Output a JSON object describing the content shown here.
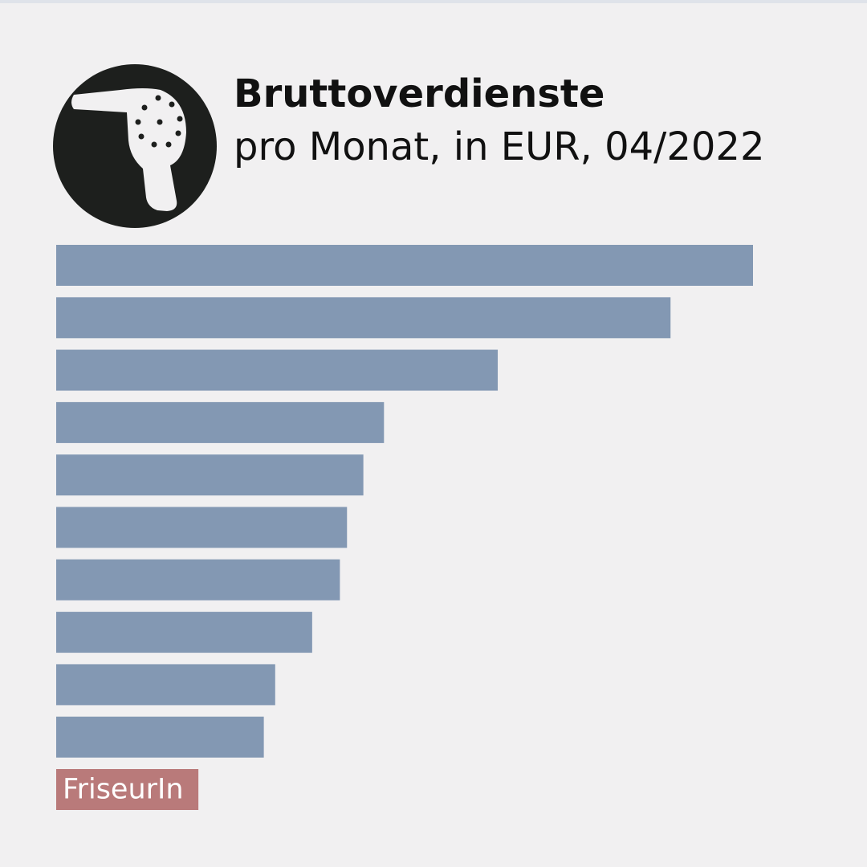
{
  "chart_data": {
    "type": "bar",
    "orientation": "horizontal",
    "title": "Bruttoverdienste",
    "subtitle": "pro Monat, in EUR, 04/2022",
    "categories": [
      null,
      null,
      null,
      null,
      null,
      null,
      null,
      null,
      null,
      null,
      "FriseurIn"
    ],
    "values": [
      9800,
      8640,
      6210,
      4610,
      4320,
      4090,
      3990,
      3600,
      3080,
      2920,
      2000
    ],
    "colors": [
      "#8398b3",
      "#8398b3",
      "#8398b3",
      "#8398b3",
      "#8398b3",
      "#8398b3",
      "#8398b3",
      "#8398b3",
      "#8398b3",
      "#8398b3",
      "#b97a7a"
    ]
  }
}
